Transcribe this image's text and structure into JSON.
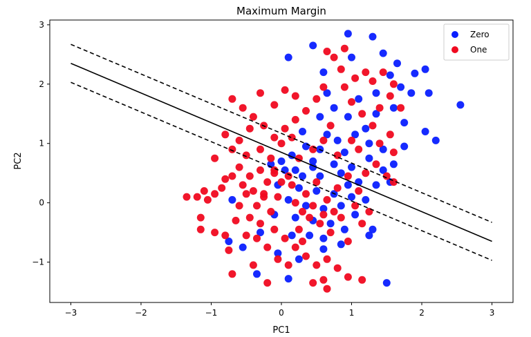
{
  "chart_data": {
    "type": "scatter",
    "title": "Maximum Margin",
    "xlabel": "PC1",
    "ylabel": "PC2",
    "xlim": [
      -3.3,
      3.3
    ],
    "ylim": [
      -1.68,
      3.08
    ],
    "xticks": [
      -3,
      -2,
      -1,
      0,
      1,
      2,
      3
    ],
    "yticks": [
      -1,
      0,
      1,
      2,
      3
    ],
    "xtick_labels": [
      "−3",
      "−2",
      "−1",
      "0",
      "1",
      "2",
      "3"
    ],
    "ytick_labels": [
      "−1",
      "0",
      "1",
      "2",
      "3"
    ],
    "grid": false,
    "legend_position": "top-right",
    "series": [
      {
        "name": "Zero",
        "color": "#0a1fff",
        "points": [
          [
            0.95,
            2.85
          ],
          [
            1.3,
            2.8
          ],
          [
            1.45,
            2.52
          ],
          [
            0.45,
            2.65
          ],
          [
            0.1,
            2.45
          ],
          [
            1.65,
            2.35
          ],
          [
            2.05,
            2.25
          ],
          [
            1.9,
            2.18
          ],
          [
            1.55,
            2.15
          ],
          [
            1.7,
            1.95
          ],
          [
            1.1,
            1.75
          ],
          [
            1.85,
            1.85
          ],
          [
            2.1,
            1.85
          ],
          [
            2.55,
            1.65
          ],
          [
            0.75,
            1.6
          ],
          [
            0.95,
            1.45
          ],
          [
            1.35,
            1.5
          ],
          [
            1.2,
            1.25
          ],
          [
            1.75,
            1.35
          ],
          [
            2.05,
            1.2
          ],
          [
            2.2,
            1.05
          ],
          [
            1.75,
            0.95
          ],
          [
            0.55,
            1.45
          ],
          [
            0.65,
            1.15
          ],
          [
            0.8,
            1.05
          ],
          [
            1.05,
            1.15
          ],
          [
            1.25,
            1.0
          ],
          [
            0.9,
            0.85
          ],
          [
            0.55,
            0.9
          ],
          [
            0.35,
            0.95
          ],
          [
            0.15,
            0.8
          ],
          [
            0.45,
            0.7
          ],
          [
            0.75,
            0.65
          ],
          [
            1.0,
            0.6
          ],
          [
            1.25,
            0.75
          ],
          [
            1.45,
            0.55
          ],
          [
            1.6,
            0.65
          ],
          [
            1.55,
            0.35
          ],
          [
            0.3,
            0.45
          ],
          [
            0.55,
            0.45
          ],
          [
            0.85,
            0.5
          ],
          [
            1.1,
            0.35
          ],
          [
            1.35,
            0.3
          ],
          [
            0.05,
            0.55
          ],
          [
            -0.15,
            0.65
          ],
          [
            0.25,
            0.25
          ],
          [
            0.5,
            0.2
          ],
          [
            0.75,
            0.15
          ],
          [
            1.0,
            0.1
          ],
          [
            1.2,
            0.05
          ],
          [
            0.1,
            0.05
          ],
          [
            -0.05,
            0.3
          ],
          [
            0.35,
            -0.05
          ],
          [
            0.6,
            -0.1
          ],
          [
            0.85,
            -0.05
          ],
          [
            1.05,
            -0.2
          ],
          [
            -0.1,
            -0.2
          ],
          [
            0.2,
            -0.25
          ],
          [
            0.45,
            -0.3
          ],
          [
            0.7,
            -0.35
          ],
          [
            0.9,
            -0.45
          ],
          [
            1.3,
            -0.45
          ],
          [
            -0.7,
            0.05
          ],
          [
            -0.75,
            -0.65
          ],
          [
            -0.55,
            -0.75
          ],
          [
            0.6,
            -0.6
          ],
          [
            0.85,
            -0.7
          ],
          [
            1.25,
            -0.55
          ],
          [
            0.15,
            -0.55
          ],
          [
            0.4,
            -0.55
          ],
          [
            -0.05,
            -0.85
          ],
          [
            0.25,
            -0.95
          ],
          [
            0.6,
            -0.78
          ],
          [
            1.5,
            -1.35
          ],
          [
            0.1,
            -1.28
          ],
          [
            -0.35,
            -1.2
          ],
          [
            -0.3,
            -0.5
          ],
          [
            0.0,
            0.7
          ],
          [
            0.65,
            1.85
          ],
          [
            1.45,
            0.9
          ],
          [
            0.3,
            1.2
          ],
          [
            1.35,
            1.85
          ],
          [
            0.45,
            0.6
          ],
          [
            0.95,
            0.3
          ],
          [
            0.2,
            0.55
          ],
          [
            1.6,
            1.6
          ],
          [
            1.0,
            2.45
          ],
          [
            0.6,
            2.2
          ]
        ]
      },
      {
        "name": "One",
        "color": "#f00a20",
        "points": [
          [
            -1.35,
            0.1
          ],
          [
            -1.2,
            0.1
          ],
          [
            -1.1,
            0.2
          ],
          [
            -1.05,
            0.05
          ],
          [
            -0.95,
            0.15
          ],
          [
            -0.85,
            0.25
          ],
          [
            -0.8,
            0.4
          ],
          [
            -0.7,
            0.45
          ],
          [
            -0.6,
            0.6
          ],
          [
            -0.55,
            0.3
          ],
          [
            -0.45,
            0.45
          ],
          [
            -0.4,
            0.2
          ],
          [
            -0.3,
            0.55
          ],
          [
            -0.2,
            0.35
          ],
          [
            -0.1,
            0.5
          ],
          [
            0.0,
            0.35
          ],
          [
            -0.5,
            0.15
          ],
          [
            -0.35,
            -0.05
          ],
          [
            -0.25,
            0.1
          ],
          [
            -0.15,
            -0.15
          ],
          [
            -0.6,
            -0.05
          ],
          [
            -0.45,
            -0.25
          ],
          [
            -0.3,
            -0.35
          ],
          [
            -0.1,
            -0.45
          ],
          [
            0.05,
            -0.6
          ],
          [
            0.2,
            -0.75
          ],
          [
            0.35,
            -0.9
          ],
          [
            0.5,
            -1.05
          ],
          [
            0.65,
            -0.95
          ],
          [
            0.8,
            -1.1
          ],
          [
            0.95,
            -1.25
          ],
          [
            1.15,
            -1.3
          ],
          [
            0.45,
            -1.35
          ],
          [
            0.65,
            -1.45
          ],
          [
            -0.4,
            -1.05
          ],
          [
            -0.2,
            -1.35
          ],
          [
            -0.7,
            -1.2
          ],
          [
            -1.15,
            -0.25
          ],
          [
            -0.95,
            -0.5
          ],
          [
            -0.8,
            -0.55
          ],
          [
            -0.65,
            -0.3
          ],
          [
            -0.5,
            -0.55
          ],
          [
            -0.35,
            -0.6
          ],
          [
            -0.2,
            -0.75
          ],
          [
            -0.05,
            -0.95
          ],
          [
            0.1,
            -1.05
          ],
          [
            0.25,
            -0.45
          ],
          [
            0.4,
            -0.25
          ],
          [
            0.55,
            -0.35
          ],
          [
            0.7,
            -0.5
          ],
          [
            0.85,
            -0.25
          ],
          [
            0.95,
            -0.65
          ],
          [
            1.05,
            -0.05
          ],
          [
            1.15,
            -0.35
          ],
          [
            0.2,
            0.0
          ],
          [
            0.35,
            0.15
          ],
          [
            0.5,
            0.35
          ],
          [
            0.65,
            0.05
          ],
          [
            0.8,
            0.25
          ],
          [
            0.95,
            0.45
          ],
          [
            1.1,
            0.2
          ],
          [
            1.2,
            0.5
          ],
          [
            1.35,
            0.65
          ],
          [
            1.5,
            0.45
          ],
          [
            1.6,
            0.85
          ],
          [
            1.4,
            1.0
          ],
          [
            1.55,
            1.15
          ],
          [
            1.3,
            1.3
          ],
          [
            1.15,
            1.5
          ],
          [
            1.0,
            1.7
          ],
          [
            0.9,
            1.95
          ],
          [
            1.05,
            2.1
          ],
          [
            1.2,
            2.2
          ],
          [
            1.3,
            2.05
          ],
          [
            1.45,
            2.2
          ],
          [
            1.6,
            2.0
          ],
          [
            1.55,
            1.8
          ],
          [
            1.7,
            1.6
          ],
          [
            0.85,
            2.25
          ],
          [
            0.75,
            2.45
          ],
          [
            0.9,
            2.6
          ],
          [
            0.65,
            2.55
          ],
          [
            0.6,
            1.95
          ],
          [
            0.5,
            1.75
          ],
          [
            0.35,
            1.55
          ],
          [
            0.2,
            1.4
          ],
          [
            0.05,
            1.25
          ],
          [
            -0.1,
            1.1
          ],
          [
            -0.25,
            1.3
          ],
          [
            -0.4,
            1.45
          ],
          [
            -0.55,
            1.6
          ],
          [
            -0.7,
            1.75
          ],
          [
            -0.3,
            1.85
          ],
          [
            -0.1,
            1.65
          ],
          [
            0.05,
            1.9
          ],
          [
            0.2,
            1.8
          ],
          [
            -0.45,
            1.25
          ],
          [
            -0.6,
            1.05
          ],
          [
            -0.8,
            1.15
          ],
          [
            -0.7,
            0.9
          ],
          [
            -0.5,
            0.8
          ],
          [
            -0.3,
            0.9
          ],
          [
            -0.15,
            0.75
          ],
          [
            0.0,
            1.0
          ],
          [
            0.15,
            1.1
          ],
          [
            -0.95,
            0.75
          ],
          [
            0.25,
            0.75
          ],
          [
            0.45,
            0.9
          ],
          [
            0.6,
            1.05
          ],
          [
            1.0,
            1.05
          ],
          [
            0.8,
            0.8
          ],
          [
            1.1,
            0.9
          ],
          [
            -0.25,
            0.15
          ],
          [
            -0.05,
            0.1
          ],
          [
            0.15,
            0.3
          ],
          [
            0.3,
            -0.15
          ],
          [
            0.45,
            -0.05
          ],
          [
            0.6,
            -0.2
          ],
          [
            0.75,
            -0.15
          ],
          [
            1.25,
            -0.15
          ],
          [
            1.6,
            0.35
          ],
          [
            -1.15,
            -0.45
          ],
          [
            -0.75,
            -0.8
          ],
          [
            0.3,
            -0.65
          ],
          [
            0.6,
            -1.3
          ],
          [
            -0.1,
            0.55
          ],
          [
            0.1,
            0.45
          ],
          [
            1.4,
            1.6
          ],
          [
            0.7,
            1.3
          ]
        ]
      }
    ],
    "lines": [
      {
        "name": "decision-boundary",
        "style": "solid",
        "color": "#000000",
        "x": [
          -3,
          3
        ],
        "y": [
          2.35,
          -0.65
        ]
      },
      {
        "name": "upper-margin",
        "style": "dashed",
        "color": "#000000",
        "x": [
          -3,
          3
        ],
        "y": [
          2.67,
          -0.33
        ]
      },
      {
        "name": "lower-margin",
        "style": "dashed",
        "color": "#000000",
        "x": [
          -3,
          3
        ],
        "y": [
          2.03,
          -0.97
        ]
      }
    ]
  }
}
